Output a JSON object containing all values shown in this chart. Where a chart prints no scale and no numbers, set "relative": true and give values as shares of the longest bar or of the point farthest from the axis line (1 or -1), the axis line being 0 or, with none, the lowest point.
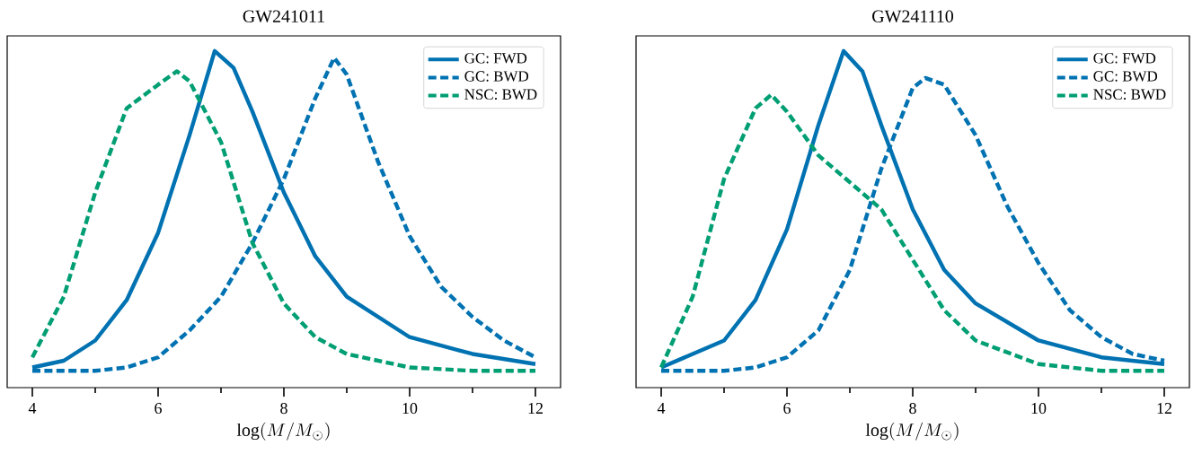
{
  "chart_data": [
    {
      "type": "line",
      "title": "GW241011",
      "xlabel": "\\log(M/M_\\odot)",
      "relative": true,
      "xlim": [
        3.6,
        12.4
      ],
      "xticks": [
        4,
        6,
        8,
        10,
        12
      ],
      "legend": "top right",
      "marker": "none",
      "series": [
        {
          "name": "GC: FWD",
          "color": "#0072b2",
          "line_style": "solid",
          "x": [
            4,
            4.5,
            5,
            5.5,
            6,
            6.5,
            6.9,
            7.2,
            7.5,
            8,
            8.5,
            9,
            10,
            11,
            12
          ],
          "values": [
            0.06,
            0.08,
            0.14,
            0.26,
            0.46,
            0.75,
            1.0,
            0.95,
            0.82,
            0.58,
            0.39,
            0.27,
            0.15,
            0.1,
            0.07
          ]
        },
        {
          "name": "GC: BWD",
          "color": "#0072b2",
          "line_style": "dashed",
          "x": [
            4,
            5,
            5.5,
            6,
            6.5,
            7,
            7.5,
            8,
            8.5,
            8.8,
            9,
            9.5,
            10,
            10.5,
            11,
            11.5,
            12
          ],
          "values": [
            0.05,
            0.05,
            0.06,
            0.09,
            0.17,
            0.27,
            0.43,
            0.62,
            0.86,
            0.98,
            0.93,
            0.67,
            0.45,
            0.3,
            0.21,
            0.14,
            0.09
          ]
        },
        {
          "name": "NSC: BWD",
          "color": "#009e73",
          "line_style": "dashed",
          "x": [
            4,
            4.5,
            5,
            5.5,
            6,
            6.3,
            6.5,
            7,
            7.5,
            8,
            8.5,
            9,
            10,
            11,
            12
          ],
          "values": [
            0.09,
            0.27,
            0.58,
            0.83,
            0.9,
            0.94,
            0.91,
            0.73,
            0.43,
            0.25,
            0.15,
            0.1,
            0.06,
            0.05,
            0.05
          ]
        }
      ]
    },
    {
      "type": "line",
      "title": "GW241110",
      "xlabel": "\\log(M/M_\\odot)",
      "relative": true,
      "xlim": [
        3.6,
        12.4
      ],
      "xticks": [
        4,
        6,
        8,
        10,
        12
      ],
      "legend": "top right",
      "marker": "none",
      "series": [
        {
          "name": "GC: FWD",
          "color": "#0072b2",
          "line_style": "solid",
          "x": [
            4,
            5,
            5.5,
            6,
            6.5,
            6.9,
            7.2,
            7.5,
            8,
            8.5,
            9,
            10,
            11,
            12
          ],
          "values": [
            0.06,
            0.14,
            0.26,
            0.47,
            0.78,
            1.0,
            0.94,
            0.78,
            0.53,
            0.35,
            0.25,
            0.14,
            0.09,
            0.07
          ]
        },
        {
          "name": "GC: BWD",
          "color": "#0072b2",
          "line_style": "dashed",
          "x": [
            4,
            5,
            5.5,
            6,
            6.5,
            7,
            7.5,
            8,
            8.2,
            8.5,
            9,
            9.5,
            10,
            10.5,
            11,
            11.5,
            12
          ],
          "values": [
            0.05,
            0.05,
            0.06,
            0.09,
            0.17,
            0.35,
            0.65,
            0.89,
            0.92,
            0.9,
            0.75,
            0.54,
            0.37,
            0.23,
            0.15,
            0.1,
            0.08
          ]
        },
        {
          "name": "NSC: BWD",
          "color": "#009e73",
          "line_style": "dashed",
          "x": [
            4,
            4.5,
            5,
            5.5,
            5.75,
            6,
            6.5,
            7,
            7.5,
            8,
            8.5,
            9,
            10,
            11,
            12
          ],
          "values": [
            0.06,
            0.27,
            0.62,
            0.83,
            0.87,
            0.82,
            0.69,
            0.61,
            0.53,
            0.38,
            0.23,
            0.14,
            0.07,
            0.05,
            0.05
          ]
        }
      ]
    }
  ]
}
